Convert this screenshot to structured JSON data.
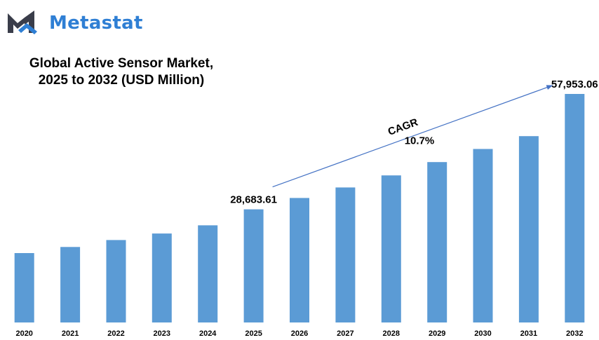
{
  "brand": {
    "name": "Metastat",
    "logo_icon": "metastat-m-logo-icon",
    "colors": {
      "word": "#2f7fd4",
      "mark_dark": "#3a3d4a",
      "mark_blue": "#2f7fd4"
    }
  },
  "chart_data": {
    "type": "bar",
    "title": "Global Active Sensor Market, 2025 to 2032 (USD Million)",
    "title_lines": [
      "Global Active Sensor Market,",
      "2025 to 2032 (USD Million)"
    ],
    "categories": [
      "2020",
      "2021",
      "2022",
      "2023",
      "2024",
      "2025",
      "2026",
      "2027",
      "2028",
      "2029",
      "2030",
      "2031",
      "2032"
    ],
    "values": [
      17600,
      19140,
      20900,
      22550,
      24640,
      28683.61,
      31570,
      34230,
      37290,
      40670,
      44000,
      47250,
      57953.06
    ],
    "ylim": [
      0,
      61500
    ],
    "xlabel": "",
    "ylabel": "",
    "grid": false,
    "legend": "none",
    "bar_color": "#5b9bd5",
    "data_labels": [
      {
        "category": "2025",
        "text": "28,683.61"
      },
      {
        "category": "2032",
        "text": "57,953.06"
      }
    ],
    "annotation": {
      "label": "CAGR",
      "value": "10.7%",
      "from_category": "2025",
      "to_category": "2032",
      "arrow_color": "#4472c4"
    }
  }
}
